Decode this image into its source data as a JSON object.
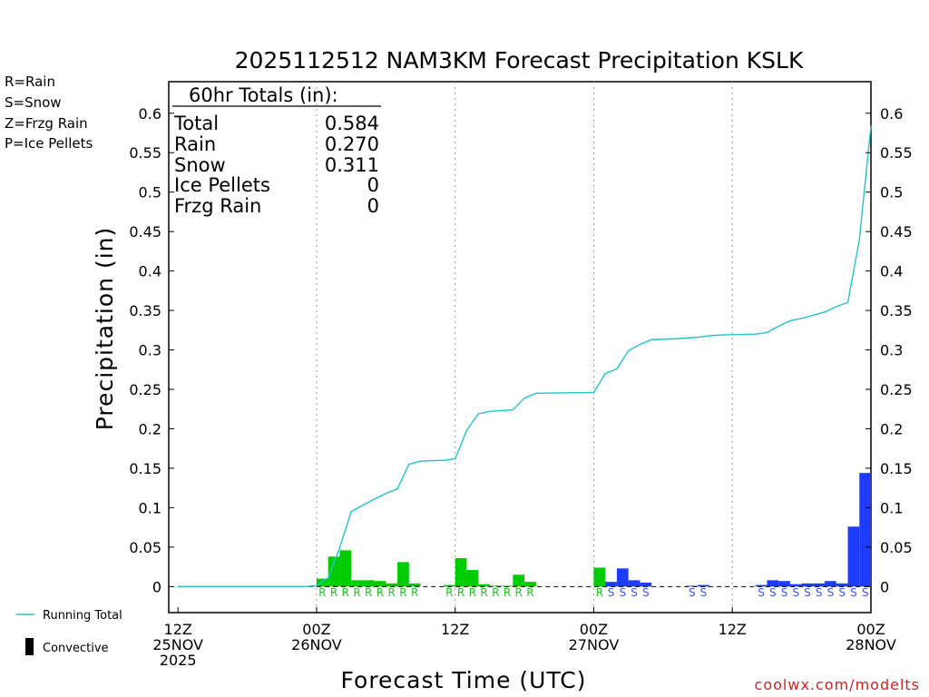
{
  "chart_data": {
    "type": "bar",
    "title": "2025112512 NAM3KM Forecast Precipitation KSLK",
    "xlabel": "Forecast Time (UTC)",
    "ylabel": "Precipitation (in)",
    "ylim": [
      -0.033,
      0.64
    ],
    "y_ticks": [
      0,
      0.05,
      0.1,
      0.15,
      0.2,
      0.25,
      0.3,
      0.35,
      0.4,
      0.45,
      0.5,
      0.55,
      0.6
    ],
    "y_tick_labels": [
      "0",
      "0.05",
      "0.1",
      "0.15",
      "0.2",
      "0.25",
      "0.3",
      "0.35",
      "0.4",
      "0.45",
      "0.5",
      "0.55",
      "0.6"
    ],
    "x_range_hours": [
      -0.8,
      60
    ],
    "x_ticks": [
      {
        "hour": 0,
        "lines": [
          "12Z",
          "25NOV",
          "2025"
        ]
      },
      {
        "hour": 12,
        "lines": [
          "00Z",
          "26NOV"
        ]
      },
      {
        "hour": 24,
        "lines": [
          "12Z"
        ]
      },
      {
        "hour": 36,
        "lines": [
          "00Z",
          "27NOV"
        ]
      },
      {
        "hour": 48,
        "lines": [
          "12Z"
        ]
      },
      {
        "hour": 60,
        "lines": [
          "00Z",
          "28NOV"
        ]
      }
    ],
    "gridlines_hours": [
      12,
      24,
      36,
      48
    ],
    "legend_types": [
      {
        "label": "R=Rain",
        "color": "#22dd22"
      },
      {
        "label": "S=Snow",
        "color": "#4455ee"
      },
      {
        "label": "Z=Frzg Rain",
        "color": "#f08a3a"
      },
      {
        "label": "P=Ice Pellets",
        "color": "#e0308a"
      }
    ],
    "series_legend": {
      "running_total": "Running Total",
      "convective": "Convective"
    },
    "type_colors": {
      "R": "#00cc00",
      "S": "#1e3cff"
    },
    "line_color": "#22c4cc",
    "totals_box": {
      "header": "60hr Totals (in):",
      "rows": [
        {
          "label": "Total",
          "value": "0.584"
        },
        {
          "label": "Rain",
          "value": "0.270"
        },
        {
          "label": "Snow",
          "value": "0.311"
        },
        {
          "label": "Ice Pellets",
          "value": "0"
        },
        {
          "label": "Frzg Rain",
          "value": "0"
        }
      ]
    },
    "bars": [
      {
        "hour": 12,
        "value": 0.001,
        "type": "R"
      },
      {
        "hour": 13,
        "value": 0.01,
        "type": "R"
      },
      {
        "hour": 14,
        "value": 0.038,
        "type": "R"
      },
      {
        "hour": 15,
        "value": 0.046,
        "type": "R"
      },
      {
        "hour": 16,
        "value": 0.008,
        "type": "R"
      },
      {
        "hour": 17,
        "value": 0.008,
        "type": "R"
      },
      {
        "hour": 18,
        "value": 0.007,
        "type": "R"
      },
      {
        "hour": 19,
        "value": 0.004,
        "type": "R"
      },
      {
        "hour": 20,
        "value": 0.031,
        "type": "R"
      },
      {
        "hour": 21,
        "value": 0.004,
        "type": "R"
      },
      {
        "hour": 24,
        "value": 0.002,
        "type": "R"
      },
      {
        "hour": 25,
        "value": 0.036,
        "type": "R"
      },
      {
        "hour": 26,
        "value": 0.021,
        "type": "R"
      },
      {
        "hour": 27,
        "value": 0.003,
        "type": "R"
      },
      {
        "hour": 28,
        "value": 0.001,
        "type": "R"
      },
      {
        "hour": 29,
        "value": 0.001,
        "type": "R"
      },
      {
        "hour": 30,
        "value": 0.015,
        "type": "R"
      },
      {
        "hour": 31,
        "value": 0.006,
        "type": "R"
      },
      {
        "hour": 37,
        "value": 0.024,
        "type": "R"
      },
      {
        "hour": 38,
        "value": 0.006,
        "type": "S"
      },
      {
        "hour": 39,
        "value": 0.023,
        "type": "S"
      },
      {
        "hour": 40,
        "value": 0.008,
        "type": "S"
      },
      {
        "hour": 41,
        "value": 0.005,
        "type": "S"
      },
      {
        "hour": 45,
        "value": 0.001,
        "type": "S"
      },
      {
        "hour": 46,
        "value": 0.002,
        "type": "S"
      },
      {
        "hour": 51,
        "value": 0.002,
        "type": "S"
      },
      {
        "hour": 52,
        "value": 0.008,
        "type": "S"
      },
      {
        "hour": 53,
        "value": 0.007,
        "type": "S"
      },
      {
        "hour": 54,
        "value": 0.003,
        "type": "S"
      },
      {
        "hour": 55,
        "value": 0.004,
        "type": "S"
      },
      {
        "hour": 56,
        "value": 0.004,
        "type": "S"
      },
      {
        "hour": 57,
        "value": 0.007,
        "type": "S"
      },
      {
        "hour": 58,
        "value": 0.004,
        "type": "S"
      },
      {
        "hour": 59,
        "value": 0.076,
        "type": "S"
      },
      {
        "hour": 60,
        "value": 0.144,
        "type": "S"
      }
    ],
    "type_letters": [
      {
        "hour": 13,
        "letter": "R"
      },
      {
        "hour": 14,
        "letter": "R"
      },
      {
        "hour": 15,
        "letter": "R"
      },
      {
        "hour": 16,
        "letter": "R"
      },
      {
        "hour": 17,
        "letter": "R"
      },
      {
        "hour": 18,
        "letter": "R"
      },
      {
        "hour": 19,
        "letter": "R"
      },
      {
        "hour": 20,
        "letter": "R"
      },
      {
        "hour": 21,
        "letter": "R"
      },
      {
        "hour": 24,
        "letter": "R"
      },
      {
        "hour": 25,
        "letter": "R"
      },
      {
        "hour": 26,
        "letter": "R"
      },
      {
        "hour": 27,
        "letter": "R"
      },
      {
        "hour": 28,
        "letter": "R"
      },
      {
        "hour": 29,
        "letter": "R"
      },
      {
        "hour": 30,
        "letter": "R"
      },
      {
        "hour": 31,
        "letter": "R"
      },
      {
        "hour": 37,
        "letter": "R"
      },
      {
        "hour": 38,
        "letter": "S"
      },
      {
        "hour": 39,
        "letter": "S"
      },
      {
        "hour": 40,
        "letter": "S"
      },
      {
        "hour": 41,
        "letter": "S"
      },
      {
        "hour": 45,
        "letter": "S"
      },
      {
        "hour": 46,
        "letter": "S"
      },
      {
        "hour": 51,
        "letter": "S"
      },
      {
        "hour": 52,
        "letter": "S"
      },
      {
        "hour": 53,
        "letter": "S"
      },
      {
        "hour": 54,
        "letter": "S"
      },
      {
        "hour": 55,
        "letter": "S"
      },
      {
        "hour": 56,
        "letter": "S"
      },
      {
        "hour": 57,
        "letter": "S"
      },
      {
        "hour": 58,
        "letter": "S"
      },
      {
        "hour": 59,
        "letter": "S"
      },
      {
        "hour": 60,
        "letter": "S"
      }
    ],
    "running_total": [
      {
        "hour": 0,
        "value": 0
      },
      {
        "hour": 11,
        "value": 0
      },
      {
        "hour": 12,
        "value": 0.001
      },
      {
        "hour": 13,
        "value": 0.011
      },
      {
        "hour": 14,
        "value": 0.049
      },
      {
        "hour": 15,
        "value": 0.095
      },
      {
        "hour": 16,
        "value": 0.103
      },
      {
        "hour": 17,
        "value": 0.111
      },
      {
        "hour": 18,
        "value": 0.118
      },
      {
        "hour": 19,
        "value": 0.124
      },
      {
        "hour": 20,
        "value": 0.155
      },
      {
        "hour": 21,
        "value": 0.159
      },
      {
        "hour": 23,
        "value": 0.16
      },
      {
        "hour": 24,
        "value": 0.162
      },
      {
        "hour": 25,
        "value": 0.198
      },
      {
        "hour": 26,
        "value": 0.219
      },
      {
        "hour": 27,
        "value": 0.222
      },
      {
        "hour": 28,
        "value": 0.223
      },
      {
        "hour": 29,
        "value": 0.224
      },
      {
        "hour": 30,
        "value": 0.239
      },
      {
        "hour": 31,
        "value": 0.245
      },
      {
        "hour": 36,
        "value": 0.246
      },
      {
        "hour": 37,
        "value": 0.27
      },
      {
        "hour": 38,
        "value": 0.276
      },
      {
        "hour": 39,
        "value": 0.299
      },
      {
        "hour": 40,
        "value": 0.307
      },
      {
        "hour": 41,
        "value": 0.313
      },
      {
        "hour": 43,
        "value": 0.314
      },
      {
        "hour": 44,
        "value": 0.315
      },
      {
        "hour": 45,
        "value": 0.316
      },
      {
        "hour": 46,
        "value": 0.318
      },
      {
        "hour": 47,
        "value": 0.319
      },
      {
        "hour": 50,
        "value": 0.32
      },
      {
        "hour": 51,
        "value": 0.322
      },
      {
        "hour": 52,
        "value": 0.33
      },
      {
        "hour": 53,
        "value": 0.337
      },
      {
        "hour": 54,
        "value": 0.34
      },
      {
        "hour": 55,
        "value": 0.344
      },
      {
        "hour": 56,
        "value": 0.348
      },
      {
        "hour": 57,
        "value": 0.355
      },
      {
        "hour": 58,
        "value": 0.36
      },
      {
        "hour": 59,
        "value": 0.44
      },
      {
        "hour": 60,
        "value": 0.584
      }
    ],
    "credit": "coolwx.com/modelts"
  }
}
